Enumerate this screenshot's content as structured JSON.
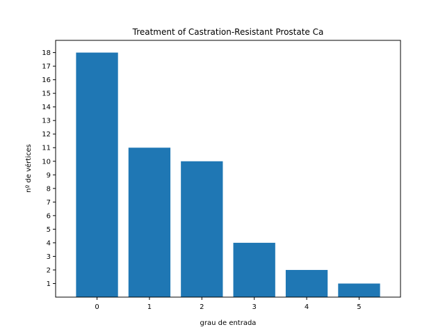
{
  "chart_data": {
    "type": "bar",
    "title": "Treatment of Castration-Resistant Prostate Ca",
    "xlabel": "grau de entrada",
    "ylabel": "nº de vértices",
    "categories": [
      "0",
      "1",
      "2",
      "3",
      "4",
      "5"
    ],
    "values": [
      18,
      11,
      10,
      4,
      2,
      1
    ],
    "yticks": [
      1,
      2,
      3,
      4,
      5,
      6,
      7,
      8,
      9,
      10,
      11,
      12,
      13,
      14,
      15,
      16,
      17,
      18
    ],
    "ylim": [
      0,
      18.9
    ],
    "xlim": [
      -0.79,
      5.79
    ],
    "grid": false,
    "bar_color": "#1f77b4"
  }
}
